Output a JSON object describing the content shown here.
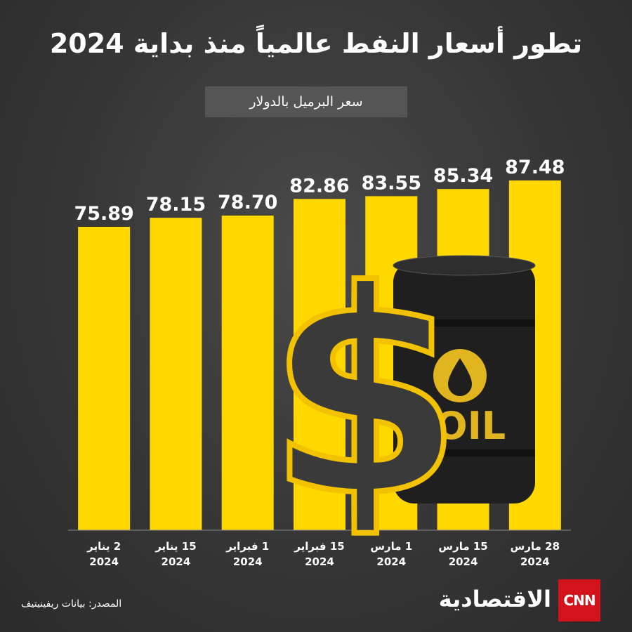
{
  "chart_data": {
    "type": "bar",
    "title": "تطور أسعار النفط عالمياً منذ بداية 2024",
    "subtitle": "سعر البرميل بالدولار",
    "categories": [
      "2 يناير\n2024",
      "15 يناير\n2024",
      "1 فبراير\n2024",
      "15 فبراير\n2024",
      "1 مارس\n2024",
      "15 مارس\n2024",
      "28 مارس\n2024"
    ],
    "values": [
      75.89,
      78.15,
      78.7,
      82.86,
      83.55,
      85.34,
      87.48
    ],
    "value_labels": [
      "75.89",
      "78.15",
      "78.70",
      "82.86",
      "83.55",
      "85.34",
      "87.48"
    ],
    "color": "#ffd800",
    "source": "المصدر: بيانات ريفينيتيف",
    "logo": "CNN",
    "brand": "الاقتصادية",
    "dollar_sign": "$",
    "barrel_label": "OIL"
  }
}
